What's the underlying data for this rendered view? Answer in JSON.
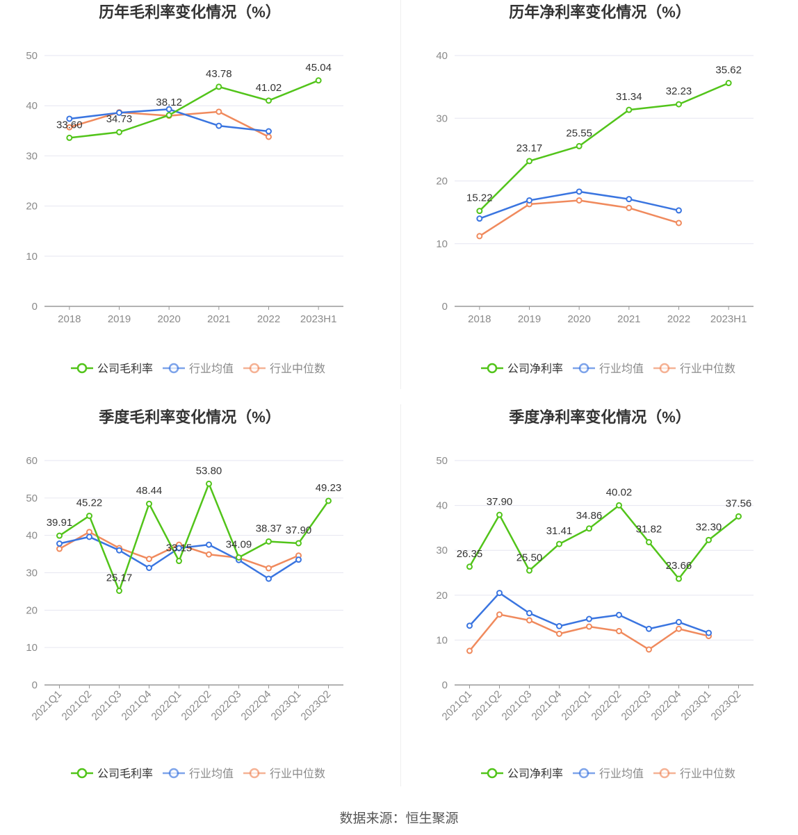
{
  "colors": {
    "company": "#52c41a",
    "industry_avg": "#3a75e0",
    "industry_median": "#f08a5d",
    "grid": "#e6e6f0",
    "axis": "#999999",
    "tick_text": "#8a8a8a",
    "label_text": "#333333",
    "title_text": "#333333"
  },
  "source": "数据来源：恒生聚源",
  "chart_data": [
    {
      "type": "line",
      "title": "历年毛利率变化情况（%）",
      "categories": [
        "2018",
        "2019",
        "2020",
        "2021",
        "2022",
        "2023H1"
      ],
      "ylim": [
        0,
        50
      ],
      "yticks": [
        0,
        10,
        20,
        30,
        40,
        50
      ],
      "rotate_x_labels": false,
      "series": [
        {
          "name": "公司毛利率",
          "key": "company",
          "values": [
            33.6,
            34.73,
            38.12,
            43.78,
            41.02,
            45.04
          ],
          "labels": [
            "33.60",
            "34.73",
            "38.12",
            "43.78",
            "41.02",
            "45.04"
          ]
        },
        {
          "name": "行业均值",
          "key": "industry_avg",
          "values": [
            37.4,
            38.6,
            39.3,
            36.0,
            34.9,
            null
          ]
        },
        {
          "name": "行业中位数",
          "key": "industry_median",
          "values": [
            35.7,
            38.7,
            38.0,
            38.8,
            33.8,
            null
          ]
        }
      ]
    },
    {
      "type": "line",
      "title": "历年净利率变化情况（%）",
      "categories": [
        "2018",
        "2019",
        "2020",
        "2021",
        "2022",
        "2023H1"
      ],
      "ylim": [
        0,
        40
      ],
      "yticks": [
        0,
        10,
        20,
        30,
        40
      ],
      "rotate_x_labels": false,
      "series": [
        {
          "name": "公司净利率",
          "key": "company",
          "values": [
            15.22,
            23.17,
            25.55,
            31.34,
            32.23,
            35.62
          ],
          "labels": [
            "15.22",
            "23.17",
            "25.55",
            "31.34",
            "32.23",
            "35.62"
          ]
        },
        {
          "name": "行业均值",
          "key": "industry_avg",
          "values": [
            14.0,
            16.9,
            18.3,
            17.1,
            15.3,
            null
          ]
        },
        {
          "name": "行业中位数",
          "key": "industry_median",
          "values": [
            11.2,
            16.3,
            16.9,
            15.7,
            13.3,
            null
          ]
        }
      ]
    },
    {
      "type": "line",
      "title": "季度毛利率变化情况（%）",
      "categories": [
        "2021Q1",
        "2021Q2",
        "2021Q3",
        "2021Q4",
        "2022Q1",
        "2022Q2",
        "2022Q3",
        "2022Q4",
        "2023Q1",
        "2023Q2"
      ],
      "ylim": [
        0,
        60
      ],
      "yticks": [
        0,
        10,
        20,
        30,
        40,
        50,
        60
      ],
      "rotate_x_labels": true,
      "series": [
        {
          "name": "公司毛利率",
          "key": "company",
          "values": [
            39.91,
            45.22,
            25.17,
            48.44,
            33.15,
            53.8,
            34.09,
            38.37,
            37.9,
            49.23
          ],
          "labels": [
            "39.91",
            "45.22",
            "25.17",
            "48.44",
            "33.15",
            "53.80",
            "34.09",
            "38.37",
            "37.90",
            "49.23"
          ]
        },
        {
          "name": "行业均值",
          "key": "industry_avg",
          "values": [
            37.8,
            39.6,
            36.0,
            31.3,
            36.6,
            37.5,
            33.4,
            28.4,
            33.5,
            null
          ]
        },
        {
          "name": "行业中位数",
          "key": "industry_median",
          "values": [
            36.4,
            40.9,
            36.6,
            33.7,
            37.5,
            34.9,
            34.0,
            31.2,
            34.6,
            null
          ]
        }
      ]
    },
    {
      "type": "line",
      "title": "季度净利率变化情况（%）",
      "categories": [
        "2021Q1",
        "2021Q2",
        "2021Q3",
        "2021Q4",
        "2022Q1",
        "2022Q2",
        "2022Q3",
        "2022Q4",
        "2023Q1",
        "2023Q2"
      ],
      "ylim": [
        0,
        50
      ],
      "yticks": [
        0,
        10,
        20,
        30,
        40,
        50
      ],
      "rotate_x_labels": true,
      "series": [
        {
          "name": "公司净利率",
          "key": "company",
          "values": [
            26.35,
            37.9,
            25.5,
            31.41,
            34.86,
            40.02,
            31.82,
            23.66,
            32.3,
            37.56
          ],
          "labels": [
            "26.35",
            "37.90",
            "25.50",
            "31.41",
            "34.86",
            "40.02",
            "31.82",
            "23.66",
            "32.30",
            "37.56"
          ]
        },
        {
          "name": "行业均值",
          "key": "industry_avg",
          "values": [
            13.2,
            20.5,
            16.0,
            13.1,
            14.7,
            15.6,
            12.5,
            14.0,
            11.6,
            null
          ]
        },
        {
          "name": "行业中位数",
          "key": "industry_median",
          "values": [
            7.6,
            15.7,
            14.4,
            11.4,
            13.0,
            12.0,
            7.9,
            12.5,
            10.9,
            null
          ]
        }
      ]
    }
  ]
}
